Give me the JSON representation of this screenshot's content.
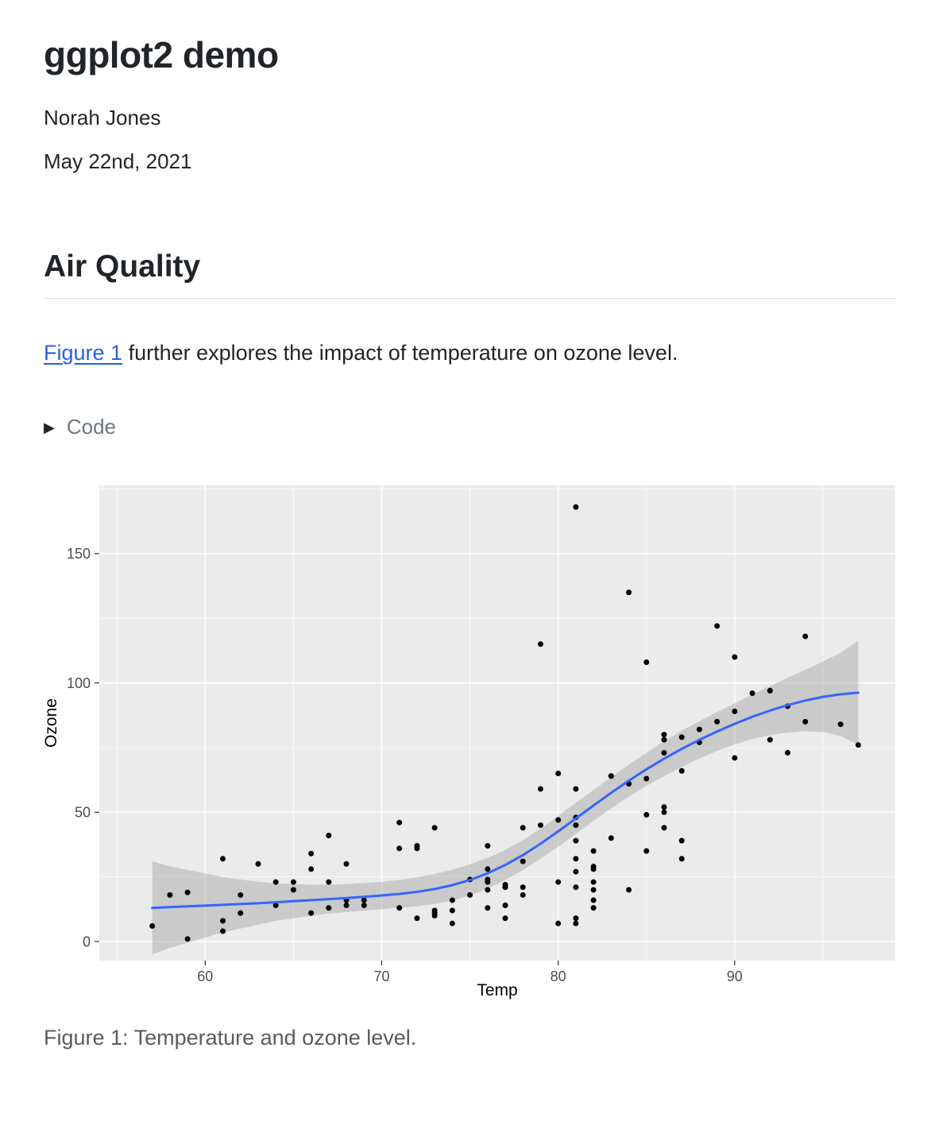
{
  "header": {
    "title": "ggplot2 demo",
    "author": "Norah Jones",
    "date": "May 22nd, 2021"
  },
  "section": {
    "heading": "Air Quality"
  },
  "paragraph": {
    "link_text": "Figure 1",
    "rest": " further explores the impact of temperature on ozone level."
  },
  "code_fold": {
    "triangle": "▶",
    "label": "Code"
  },
  "figure": {
    "caption": "Figure 1: Temperature and ozone level."
  },
  "chart_data": {
    "type": "scatter",
    "title": "",
    "xlabel": "Temp",
    "ylabel": "Ozone",
    "xlim": [
      54.0,
      99.1
    ],
    "ylim": [
      -7.35,
      176.35
    ],
    "x_ticks": [
      60,
      70,
      80,
      90
    ],
    "y_ticks": [
      0,
      50,
      100,
      150
    ],
    "x_minor": [
      55,
      65,
      75,
      85,
      95
    ],
    "y_minor": [
      25,
      75,
      125,
      175
    ],
    "grid": true,
    "legend": "none",
    "points": [
      [
        67,
        41
      ],
      [
        72,
        36
      ],
      [
        74,
        12
      ],
      [
        62,
        18
      ],
      [
        66,
        28
      ],
      [
        65,
        23
      ],
      [
        59,
        19
      ],
      [
        61,
        8
      ],
      [
        74,
        7
      ],
      [
        69,
        16
      ],
      [
        66,
        11
      ],
      [
        68,
        14
      ],
      [
        58,
        18
      ],
      [
        64,
        14
      ],
      [
        66,
        34
      ],
      [
        57,
        6
      ],
      [
        68,
        30
      ],
      [
        62,
        11
      ],
      [
        59,
        1
      ],
      [
        73,
        11
      ],
      [
        61,
        4
      ],
      [
        61,
        32
      ],
      [
        67,
        23
      ],
      [
        81,
        45
      ],
      [
        79,
        115
      ],
      [
        76,
        37
      ],
      [
        82,
        29
      ],
      [
        90,
        71
      ],
      [
        87,
        39
      ],
      [
        82,
        23
      ],
      [
        77,
        21
      ],
      [
        72,
        37
      ],
      [
        65,
        20
      ],
      [
        73,
        12
      ],
      [
        76,
        13
      ],
      [
        84,
        135
      ],
      [
        85,
        49
      ],
      [
        81,
        32
      ],
      [
        83,
        64
      ],
      [
        83,
        40
      ],
      [
        88,
        77
      ],
      [
        92,
        97
      ],
      [
        92,
        97
      ],
      [
        89,
        85
      ],
      [
        73,
        10
      ],
      [
        81,
        27
      ],
      [
        80,
        7
      ],
      [
        81,
        48
      ],
      [
        82,
        35
      ],
      [
        84,
        61
      ],
      [
        87,
        79
      ],
      [
        85,
        63
      ],
      [
        74,
        16
      ],
      [
        86,
        80
      ],
      [
        85,
        108
      ],
      [
        82,
        20
      ],
      [
        86,
        52
      ],
      [
        88,
        82
      ],
      [
        86,
        50
      ],
      [
        83,
        64
      ],
      [
        81,
        59
      ],
      [
        81,
        39
      ],
      [
        81,
        9
      ],
      [
        82,
        16
      ],
      [
        86,
        78
      ],
      [
        85,
        35
      ],
      [
        87,
        66
      ],
      [
        89,
        122
      ],
      [
        90,
        89
      ],
      [
        90,
        110
      ],
      [
        86,
        44
      ],
      [
        82,
        28
      ],
      [
        80,
        65
      ],
      [
        77,
        22
      ],
      [
        79,
        59
      ],
      [
        76,
        23
      ],
      [
        78,
        31
      ],
      [
        78,
        44
      ],
      [
        77,
        21
      ],
      [
        72,
        9
      ],
      [
        79,
        45
      ],
      [
        81,
        168
      ],
      [
        86,
        73
      ],
      [
        97,
        76
      ],
      [
        94,
        118
      ],
      [
        96,
        84
      ],
      [
        94,
        85
      ],
      [
        91,
        96
      ],
      [
        92,
        78
      ],
      [
        93,
        73
      ],
      [
        93,
        91
      ],
      [
        80,
        47
      ],
      [
        87,
        32
      ],
      [
        84,
        20
      ],
      [
        80,
        23
      ],
      [
        78,
        21
      ],
      [
        75,
        24
      ],
      [
        73,
        44
      ],
      [
        81,
        21
      ],
      [
        76,
        28
      ],
      [
        77,
        9
      ],
      [
        71,
        13
      ],
      [
        71,
        46
      ],
      [
        78,
        18
      ],
      [
        67,
        13
      ],
      [
        76,
        24
      ],
      [
        68,
        16
      ],
      [
        82,
        13
      ],
      [
        64,
        23
      ],
      [
        71,
        36
      ],
      [
        81,
        7
      ],
      [
        69,
        14
      ],
      [
        63,
        30
      ],
      [
        77,
        14
      ],
      [
        75,
        18
      ],
      [
        76,
        20
      ]
    ],
    "smooth": {
      "x": [
        57,
        58,
        59,
        60,
        61,
        62,
        63,
        64,
        65,
        66,
        67,
        68,
        69,
        70,
        71,
        72,
        73,
        74,
        75,
        76,
        77,
        78,
        79,
        80,
        81,
        82,
        83,
        84,
        85,
        86,
        87,
        88,
        89,
        90,
        91,
        92,
        93,
        94,
        95,
        96,
        97
      ],
      "fit": [
        13.0,
        13.3,
        13.6,
        13.9,
        14.2,
        14.5,
        14.8,
        15.2,
        15.6,
        16.0,
        16.4,
        16.8,
        17.3,
        17.8,
        18.4,
        19.2,
        20.3,
        21.8,
        23.8,
        26.4,
        29.6,
        33.4,
        37.8,
        42.6,
        47.6,
        52.6,
        57.5,
        62.2,
        66.6,
        70.7,
        74.5,
        78.0,
        81.2,
        84.2,
        86.9,
        89.3,
        91.4,
        93.2,
        94.6,
        95.6,
        96.2
      ],
      "lo": [
        -5.0,
        -2.5,
        -0.5,
        1.5,
        3.5,
        5.0,
        6.5,
        8.0,
        9.0,
        10.0,
        10.8,
        11.4,
        12.0,
        12.5,
        13.0,
        13.6,
        14.5,
        15.8,
        17.8,
        20.4,
        23.8,
        27.6,
        32.0,
        36.6,
        41.6,
        46.6,
        51.5,
        56.0,
        60.2,
        64.0,
        67.5,
        70.8,
        73.7,
        76.3,
        78.3,
        79.8,
        80.8,
        81.3,
        81.0,
        79.5,
        76.0
      ],
      "hi": [
        31.0,
        29.1,
        27.7,
        26.3,
        24.9,
        24.0,
        23.1,
        22.4,
        22.2,
        22.0,
        22.0,
        22.2,
        22.6,
        23.1,
        23.8,
        24.8,
        26.1,
        27.8,
        29.8,
        32.4,
        35.4,
        39.2,
        43.6,
        48.6,
        53.6,
        58.6,
        63.5,
        68.4,
        73.0,
        77.4,
        81.5,
        85.2,
        88.7,
        92.1,
        95.5,
        98.8,
        102.0,
        105.1,
        108.2,
        111.7,
        116.4
      ]
    },
    "colors": {
      "panel": "#EBEBEB",
      "grid": "#FFFFFF",
      "point": "#000000",
      "line": "#3366FF",
      "band": "#999999",
      "band_alpha": 0.4,
      "tick_text": "#4D4D4D",
      "tick_mark": "#333333",
      "axis_text": "#000000"
    }
  }
}
